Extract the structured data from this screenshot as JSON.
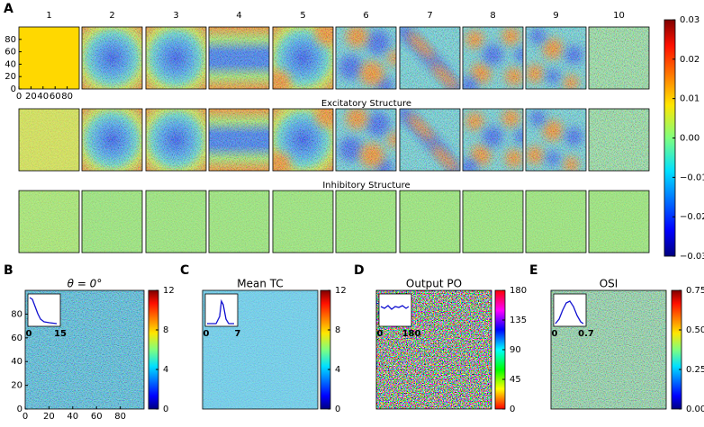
{
  "panel_a": {
    "label": "A",
    "columns": [
      "1",
      "2",
      "3",
      "4",
      "5",
      "6",
      "7",
      "8",
      "9",
      "10"
    ],
    "row_titles": [
      "Excitatory Structure",
      "Inhibitory Structure"
    ],
    "xlim": [
      0,
      100
    ],
    "xticks": [
      0,
      20,
      40,
      60,
      80
    ],
    "ylim": [
      0,
      100
    ],
    "yticks": [
      0,
      20,
      40,
      60,
      80
    ],
    "colorbar": {
      "lim": [
        -0.03,
        0.03
      ],
      "ticks": [
        {
          "value": -0.03,
          "label": "−0.03"
        },
        {
          "value": -0.02,
          "label": "−0.02"
        },
        {
          "value": -0.01,
          "label": "−0.01"
        },
        {
          "value": 0,
          "label": "0.00"
        },
        0.01,
        0.02,
        0.03
      ],
      "colormap": "jet"
    }
  },
  "panels": [
    {
      "label": "B",
      "title": "θ = 0°",
      "xlim": [
        0,
        100
      ],
      "xticks": [
        0,
        20,
        40,
        60,
        80
      ],
      "ylim": [
        0,
        100
      ],
      "yticks": [
        0,
        20,
        40,
        60,
        80
      ],
      "colorbar": {
        "lim": [
          0,
          12
        ],
        "ticks": [
          0,
          4,
          8,
          12
        ],
        "colormap": "jet"
      },
      "inset_labels": [
        "0",
        "15"
      ]
    },
    {
      "label": "C",
      "title": "Mean TC",
      "colorbar": {
        "lim": [
          0,
          12
        ],
        "ticks": [
          0,
          4,
          8,
          12
        ],
        "colormap": "jet"
      },
      "inset_labels": [
        "0",
        "7"
      ]
    },
    {
      "label": "D",
      "title": "Output PO",
      "colorbar": {
        "lim": [
          0,
          180
        ],
        "ticks": [
          0,
          45,
          90,
          135,
          180
        ],
        "colormap": "hsv"
      },
      "inset_labels": [
        "0",
        "180"
      ]
    },
    {
      "label": "E",
      "title": "OSI",
      "colorbar": {
        "lim": [
          0,
          0.75
        ],
        "ticks": [
          {
            "value": 0,
            "label": "0.00"
          },
          0.25,
          {
            "value": 0.5,
            "label": "0.50"
          },
          0.75
        ],
        "colormap": "jet"
      },
      "inset_labels": [
        "0",
        "0.7"
      ]
    }
  ]
}
